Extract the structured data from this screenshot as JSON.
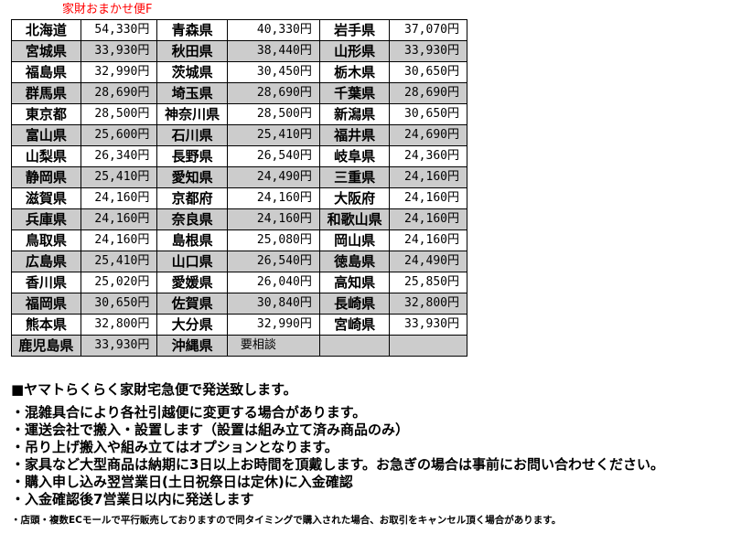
{
  "title": "家財おまかせ便F",
  "rows": [
    [
      [
        "北海道",
        "54,330円"
      ],
      [
        "青森県",
        "40,330円"
      ],
      [
        "岩手県",
        "37,070円"
      ]
    ],
    [
      [
        "宮城県",
        "33,930円"
      ],
      [
        "秋田県",
        "38,440円"
      ],
      [
        "山形県",
        "33,930円"
      ]
    ],
    [
      [
        "福島県",
        "32,990円"
      ],
      [
        "茨城県",
        "30,450円"
      ],
      [
        "栃木県",
        "30,650円"
      ]
    ],
    [
      [
        "群馬県",
        "28,690円"
      ],
      [
        "埼玉県",
        "28,690円"
      ],
      [
        "千葉県",
        "28,690円"
      ]
    ],
    [
      [
        "東京都",
        "28,500円"
      ],
      [
        "神奈川県",
        "28,500円"
      ],
      [
        "新潟県",
        "30,650円"
      ]
    ],
    [
      [
        "富山県",
        "25,600円"
      ],
      [
        "石川県",
        "25,410円"
      ],
      [
        "福井県",
        "24,690円"
      ]
    ],
    [
      [
        "山梨県",
        "26,340円"
      ],
      [
        "長野県",
        "26,540円"
      ],
      [
        "岐阜県",
        "24,360円"
      ]
    ],
    [
      [
        "静岡県",
        "25,410円"
      ],
      [
        "愛知県",
        "24,490円"
      ],
      [
        "三重県",
        "24,160円"
      ]
    ],
    [
      [
        "滋賀県",
        "24,160円"
      ],
      [
        "京都府",
        "24,160円"
      ],
      [
        "大阪府",
        "24,160円"
      ]
    ],
    [
      [
        "兵庫県",
        "24,160円"
      ],
      [
        "奈良県",
        "24,160円"
      ],
      [
        "和歌山県",
        "24,160円"
      ]
    ],
    [
      [
        "鳥取県",
        "24,160円"
      ],
      [
        "島根県",
        "25,080円"
      ],
      [
        "岡山県",
        "24,160円"
      ]
    ],
    [
      [
        "広島県",
        "25,410円"
      ],
      [
        "山口県",
        "26,540円"
      ],
      [
        "徳島県",
        "24,490円"
      ]
    ],
    [
      [
        "香川県",
        "25,020円"
      ],
      [
        "愛媛県",
        "26,040円"
      ],
      [
        "高知県",
        "25,850円"
      ]
    ],
    [
      [
        "福岡県",
        "30,650円"
      ],
      [
        "佐賀県",
        "30,840円"
      ],
      [
        "長崎県",
        "32,800円"
      ]
    ],
    [
      [
        "熊本県",
        "32,800円"
      ],
      [
        "大分県",
        "32,990円"
      ],
      [
        "宮崎県",
        "33,930円"
      ]
    ],
    [
      [
        "鹿児島県",
        "33,930円"
      ],
      [
        "沖縄県",
        "要相談"
      ],
      [
        "",
        ""
      ]
    ]
  ],
  "notes": {
    "heading": "■ヤマトらくらく家財宅急便で発送致します。",
    "items": [
      "・混雑具合により各社引越便に変更する場合があります。",
      "・運送会社で搬入・設置します（設置は組み立て済み商品のみ）",
      "・吊り上げ搬入や組み立てはオプションとなります。",
      "・家具など大型商品は納期に3日以上お時間を頂戴します。お急ぎの場合は事前にお問い合わせください。",
      "・購入申し込み翌営業日(土日祝祭日は定休)に入金確認",
      "・入金確認後7営業日以内に発送します"
    ],
    "small": "・店頭・複数ECモールで平行販売しておりますので同タイミングで購入された場合、お取引をキャンセル頂く場合があります。"
  },
  "colors": {
    "title": "#ff0000",
    "alt_row": "#cccccc"
  }
}
